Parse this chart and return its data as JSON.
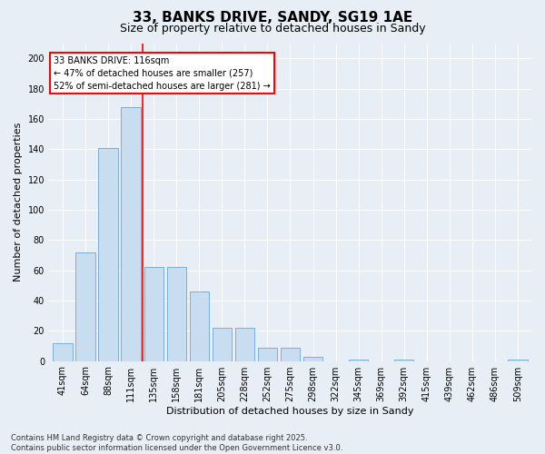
{
  "title": "33, BANKS DRIVE, SANDY, SG19 1AE",
  "subtitle": "Size of property relative to detached houses in Sandy",
  "xlabel": "Distribution of detached houses by size in Sandy",
  "ylabel": "Number of detached properties",
  "categories": [
    "41sqm",
    "64sqm",
    "88sqm",
    "111sqm",
    "135sqm",
    "158sqm",
    "181sqm",
    "205sqm",
    "228sqm",
    "252sqm",
    "275sqm",
    "298sqm",
    "322sqm",
    "345sqm",
    "369sqm",
    "392sqm",
    "415sqm",
    "439sqm",
    "462sqm",
    "486sqm",
    "509sqm"
  ],
  "values": [
    12,
    72,
    141,
    168,
    62,
    62,
    46,
    22,
    22,
    9,
    9,
    3,
    0,
    1,
    0,
    1,
    0,
    0,
    0,
    0,
    1
  ],
  "bar_color": "#c9ddf0",
  "bar_edge_color": "#7aafd4",
  "vline_color": "red",
  "annotation_text": "33 BANKS DRIVE: 116sqm\n← 47% of detached houses are smaller (257)\n52% of semi-detached houses are larger (281) →",
  "annotation_box_color": "white",
  "annotation_box_edge_color": "red",
  "ylim": [
    0,
    210
  ],
  "yticks": [
    0,
    20,
    40,
    60,
    80,
    100,
    120,
    140,
    160,
    180,
    200
  ],
  "footer": "Contains HM Land Registry data © Crown copyright and database right 2025.\nContains public sector information licensed under the Open Government Licence v3.0.",
  "background_color": "#e8eef5",
  "grid_color": "white",
  "title_fontsize": 11,
  "subtitle_fontsize": 9,
  "tick_fontsize": 7,
  "label_fontsize": 8,
  "annotation_fontsize": 7,
  "footer_fontsize": 6
}
